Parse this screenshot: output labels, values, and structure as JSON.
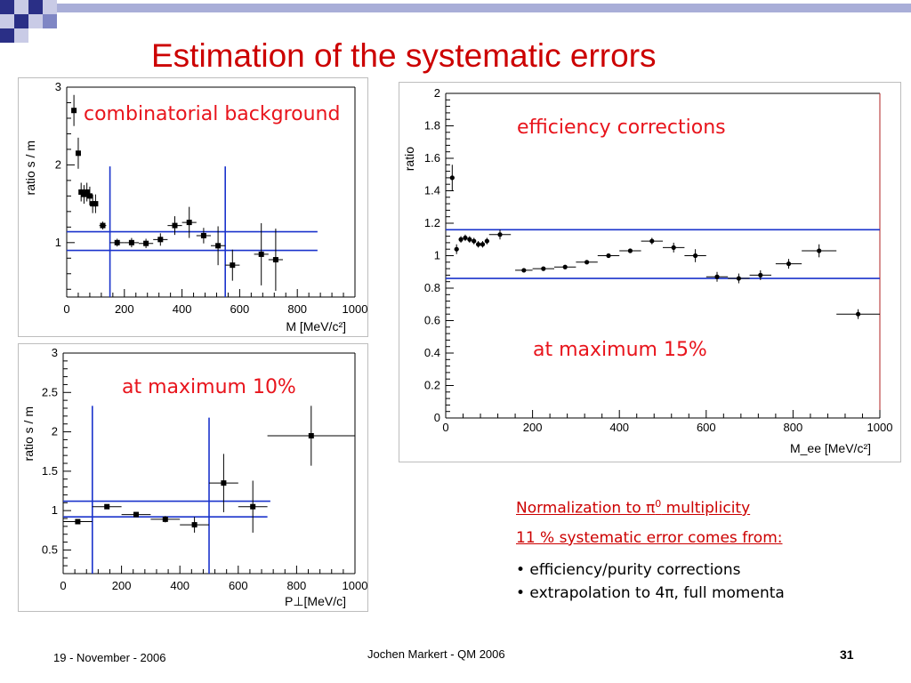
{
  "slide": {
    "title": "Estimation of the systematic errors",
    "footer_date": "19 - November - 2006",
    "footer_center": "Jochen Markert - QM 2006",
    "page_number": "31",
    "colors": {
      "title": "#cc0000",
      "annotation": "#e8141c",
      "lines": "#1a33cc",
      "frame_right": "#b22222"
    }
  },
  "annotations": {
    "combinatorial": "combinatorial background",
    "efficiency": "efficiency corrections",
    "max15": "at maximum 15%",
    "max10": "at maximum 10%"
  },
  "notes": {
    "line1_pre": "Normalization to ",
    "line1_pi": "π",
    "line1_sup": "0",
    "line1_post": " multiplicity",
    "line2": "11 % systematic error comes from:",
    "bullets": [
      "• efficiency/purity corrections",
      "• extrapolation to 4π, full momenta"
    ]
  },
  "chart_data": [
    {
      "type": "scatter",
      "title": "",
      "xlabel": "M [MeV/c²]",
      "ylabel": "ratio s / m",
      "xlim": [
        0,
        1000
      ],
      "ylim": [
        0.3,
        3
      ],
      "xticks": [
        0,
        200,
        400,
        600,
        800,
        1000
      ],
      "yticks": [
        1,
        2,
        3
      ],
      "marker": "square",
      "points": [
        {
          "x": 25,
          "y": 2.7,
          "ex": 5,
          "ey": 0.2
        },
        {
          "x": 40,
          "y": 2.15,
          "ex": 5,
          "ey": 0.2
        },
        {
          "x": 50,
          "y": 1.65,
          "ex": 5,
          "ey": 0.12
        },
        {
          "x": 60,
          "y": 1.62,
          "ex": 5,
          "ey": 0.12
        },
        {
          "x": 70,
          "y": 1.65,
          "ex": 5,
          "ey": 0.12
        },
        {
          "x": 80,
          "y": 1.6,
          "ex": 5,
          "ey": 0.12
        },
        {
          "x": 90,
          "y": 1.5,
          "ex": 5,
          "ey": 0.12
        },
        {
          "x": 100,
          "y": 1.5,
          "ex": 5,
          "ey": 0.12
        },
        {
          "x": 125,
          "y": 1.22,
          "ex": 12,
          "ey": 0.05
        },
        {
          "x": 175,
          "y": 1.0,
          "ex": 25,
          "ey": 0.05
        },
        {
          "x": 225,
          "y": 1.0,
          "ex": 25,
          "ey": 0.06
        },
        {
          "x": 275,
          "y": 0.99,
          "ex": 25,
          "ey": 0.06
        },
        {
          "x": 325,
          "y": 1.04,
          "ex": 25,
          "ey": 0.08
        },
        {
          "x": 375,
          "y": 1.22,
          "ex": 25,
          "ey": 0.12
        },
        {
          "x": 425,
          "y": 1.26,
          "ex": 25,
          "ey": 0.2
        },
        {
          "x": 475,
          "y": 1.09,
          "ex": 25,
          "ey": 0.1
        },
        {
          "x": 525,
          "y": 0.96,
          "ex": 25,
          "ey": 0.25
        },
        {
          "x": 575,
          "y": 0.71,
          "ex": 25,
          "ey": 0.2
        },
        {
          "x": 675,
          "y": 0.85,
          "ex": 25,
          "ey": 0.4
        },
        {
          "x": 725,
          "y": 0.78,
          "ex": 25,
          "ey": 0.4
        }
      ],
      "hlines": [
        {
          "y": 1.14,
          "x0": 0,
          "x1": 870
        },
        {
          "y": 0.9,
          "x0": 0,
          "x1": 870
        }
      ],
      "vlines": [
        {
          "x": 150,
          "y0": 0.3,
          "y1": 1.98
        },
        {
          "x": 550,
          "y0": 0.3,
          "y1": 1.98
        }
      ]
    },
    {
      "type": "scatter",
      "title": "",
      "xlabel": "M_ee [MeV/c²]",
      "ylabel": "ratio",
      "xlim": [
        0,
        1000
      ],
      "ylim": [
        0,
        2
      ],
      "xticks": [
        0,
        200,
        400,
        600,
        800,
        1000
      ],
      "yticks": [
        0,
        0.2,
        0.4,
        0.6,
        0.8,
        1,
        1.2,
        1.4,
        1.6,
        1.8,
        2
      ],
      "marker": "circle",
      "points": [
        {
          "x": 15,
          "y": 1.48,
          "ex": 5,
          "ey": 0.08
        },
        {
          "x": 25,
          "y": 1.04,
          "ex": 5,
          "ey": 0.03
        },
        {
          "x": 35,
          "y": 1.1,
          "ex": 5,
          "ey": 0.02
        },
        {
          "x": 45,
          "y": 1.11,
          "ex": 5,
          "ey": 0.02
        },
        {
          "x": 55,
          "y": 1.1,
          "ex": 5,
          "ey": 0.02
        },
        {
          "x": 65,
          "y": 1.09,
          "ex": 5,
          "ey": 0.02
        },
        {
          "x": 75,
          "y": 1.07,
          "ex": 5,
          "ey": 0.02
        },
        {
          "x": 85,
          "y": 1.07,
          "ex": 5,
          "ey": 0.02
        },
        {
          "x": 95,
          "y": 1.09,
          "ex": 5,
          "ey": 0.02
        },
        {
          "x": 125,
          "y": 1.13,
          "ex": 25,
          "ey": 0.03
        },
        {
          "x": 180,
          "y": 0.91,
          "ex": 20,
          "ey": 0.01
        },
        {
          "x": 225,
          "y": 0.92,
          "ex": 25,
          "ey": 0.01
        },
        {
          "x": 275,
          "y": 0.93,
          "ex": 25,
          "ey": 0.01
        },
        {
          "x": 325,
          "y": 0.96,
          "ex": 25,
          "ey": 0.01
        },
        {
          "x": 375,
          "y": 1.0,
          "ex": 25,
          "ey": 0.01
        },
        {
          "x": 425,
          "y": 1.03,
          "ex": 25,
          "ey": 0.01
        },
        {
          "x": 475,
          "y": 1.09,
          "ex": 25,
          "ey": 0.02
        },
        {
          "x": 525,
          "y": 1.05,
          "ex": 25,
          "ey": 0.03
        },
        {
          "x": 575,
          "y": 1.0,
          "ex": 25,
          "ey": 0.04
        },
        {
          "x": 625,
          "y": 0.87,
          "ex": 25,
          "ey": 0.03
        },
        {
          "x": 675,
          "y": 0.86,
          "ex": 25,
          "ey": 0.03
        },
        {
          "x": 725,
          "y": 0.88,
          "ex": 25,
          "ey": 0.03
        },
        {
          "x": 790,
          "y": 0.95,
          "ex": 30,
          "ey": 0.03
        },
        {
          "x": 860,
          "y": 1.03,
          "ex": 40,
          "ey": 0.04
        },
        {
          "x": 950,
          "y": 0.64,
          "ex": 50,
          "ey": 0.03
        }
      ],
      "hlines": [
        {
          "y": 1.16,
          "x0": 0,
          "x1": 1000
        },
        {
          "y": 0.86,
          "x0": 0,
          "x1": 1000
        }
      ],
      "vlines": []
    },
    {
      "type": "scatter",
      "title": "",
      "xlabel": "P⊥[MeV/c]",
      "ylabel": "ratio s / m",
      "xlim": [
        0,
        1000
      ],
      "ylim": [
        0.2,
        3
      ],
      "xticks": [
        0,
        200,
        400,
        600,
        800,
        1000
      ],
      "yticks": [
        0.5,
        1,
        1.5,
        2,
        2.5,
        3
      ],
      "marker": "square",
      "points": [
        {
          "x": 50,
          "y": 0.86,
          "ex": 50,
          "ey": 0.02
        },
        {
          "x": 150,
          "y": 1.05,
          "ex": 50,
          "ey": 0.02
        },
        {
          "x": 250,
          "y": 0.95,
          "ex": 50,
          "ey": 0.03
        },
        {
          "x": 350,
          "y": 0.89,
          "ex": 50,
          "ey": 0.04
        },
        {
          "x": 450,
          "y": 0.82,
          "ex": 50,
          "ey": 0.1
        },
        {
          "x": 550,
          "y": 1.35,
          "ex": 50,
          "ey": 0.37
        },
        {
          "x": 650,
          "y": 1.05,
          "ex": 50,
          "ey": 0.33
        },
        {
          "x": 850,
          "y": 1.95,
          "ex": 150,
          "ey": 0.38
        }
      ],
      "hlines": [
        {
          "y": 1.12,
          "x0": 0,
          "x1": 710
        },
        {
          "y": 0.92,
          "x0": 0,
          "x1": 700
        }
      ],
      "vlines": [
        {
          "x": 100,
          "y0": 0.2,
          "y1": 2.33
        },
        {
          "x": 500,
          "y0": 0.2,
          "y1": 2.18
        }
      ]
    }
  ]
}
